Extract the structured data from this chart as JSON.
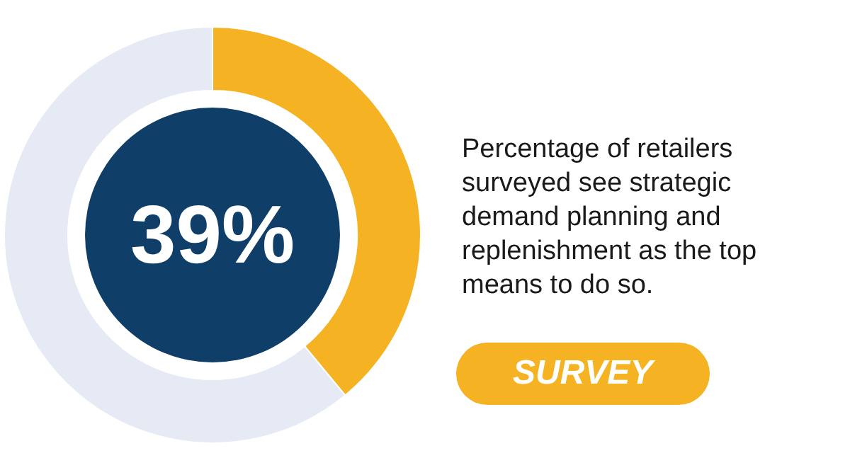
{
  "chart_data": {
    "type": "donut",
    "title": "Percentage of retailers surveyed see strategic demand planning and replenishment as the top means to do so.",
    "categories": [
      null,
      null
    ],
    "values": [
      39,
      61
    ],
    "colors": [
      "#f5b323",
      "#e6eaf4"
    ],
    "value_labels": [
      "39%",
      null
    ],
    "annotations": [
      "SURVEY"
    ]
  }
}
